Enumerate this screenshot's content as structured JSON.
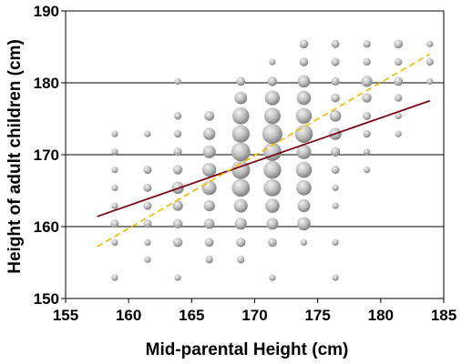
{
  "chart_data": {
    "type": "scatter",
    "title": "",
    "xlabel": "Mid-parental Height (cm)",
    "ylabel": "Height of adult children (cm)",
    "xlim": [
      155,
      185
    ],
    "ylim": [
      150,
      190
    ],
    "x_ticks": [
      155,
      160,
      165,
      170,
      175,
      180,
      185
    ],
    "y_ticks": [
      150,
      160,
      170,
      180,
      190
    ],
    "grid": "horizontal",
    "legend": "none",
    "marker_colors": {
      "light": "#f2f2f2",
      "dark": "#7a7a7a"
    },
    "x_columns": [
      158.9,
      161.5,
      163.9,
      166.4,
      168.9,
      171.4,
      173.9,
      176.4,
      178.9,
      181.4,
      183.9
    ],
    "points": [
      {
        "x": 158.9,
        "y": 152.9,
        "count": 1
      },
      {
        "x": 158.9,
        "y": 157.8,
        "count": 1
      },
      {
        "x": 158.9,
        "y": 160.4,
        "count": 3
      },
      {
        "x": 158.9,
        "y": 162.9,
        "count": 1
      },
      {
        "x": 158.9,
        "y": 165.4,
        "count": 1
      },
      {
        "x": 158.9,
        "y": 167.9,
        "count": 1
      },
      {
        "x": 158.9,
        "y": 170.4,
        "count": 1
      },
      {
        "x": 158.9,
        "y": 172.9,
        "count": 1
      },
      {
        "x": 161.5,
        "y": 155.4,
        "count": 1
      },
      {
        "x": 161.5,
        "y": 157.8,
        "count": 1
      },
      {
        "x": 161.5,
        "y": 160.4,
        "count": 3
      },
      {
        "x": 161.5,
        "y": 162.9,
        "count": 3
      },
      {
        "x": 161.5,
        "y": 165.4,
        "count": 3
      },
      {
        "x": 161.5,
        "y": 167.9,
        "count": 3
      },
      {
        "x": 161.5,
        "y": 172.9,
        "count": 1
      },
      {
        "x": 163.9,
        "y": 152.9,
        "count": 1
      },
      {
        "x": 163.9,
        "y": 157.8,
        "count": 5
      },
      {
        "x": 163.9,
        "y": 160.4,
        "count": 5
      },
      {
        "x": 163.9,
        "y": 162.9,
        "count": 7
      },
      {
        "x": 163.9,
        "y": 165.4,
        "count": 12
      },
      {
        "x": 163.9,
        "y": 167.9,
        "count": 5
      },
      {
        "x": 163.9,
        "y": 170.4,
        "count": 3
      },
      {
        "x": 163.9,
        "y": 172.9,
        "count": 2
      },
      {
        "x": 163.9,
        "y": 175.4,
        "count": 2
      },
      {
        "x": 163.9,
        "y": 180.2,
        "count": 1
      },
      {
        "x": 166.4,
        "y": 155.4,
        "count": 2
      },
      {
        "x": 166.4,
        "y": 157.8,
        "count": 4
      },
      {
        "x": 166.4,
        "y": 160.4,
        "count": 7
      },
      {
        "x": 166.4,
        "y": 162.9,
        "count": 9
      },
      {
        "x": 166.4,
        "y": 165.4,
        "count": 20
      },
      {
        "x": 166.4,
        "y": 167.9,
        "count": 18
      },
      {
        "x": 166.4,
        "y": 170.4,
        "count": 14
      },
      {
        "x": 166.4,
        "y": 172.9,
        "count": 12
      },
      {
        "x": 166.4,
        "y": 175.4,
        "count": 6
      },
      {
        "x": 168.9,
        "y": 155.4,
        "count": 2
      },
      {
        "x": 168.9,
        "y": 157.8,
        "count": 5
      },
      {
        "x": 168.9,
        "y": 160.4,
        "count": 11
      },
      {
        "x": 168.9,
        "y": 162.9,
        "count": 17
      },
      {
        "x": 168.9,
        "y": 165.4,
        "count": 36
      },
      {
        "x": 168.9,
        "y": 167.9,
        "count": 39
      },
      {
        "x": 168.9,
        "y": 170.4,
        "count": 41
      },
      {
        "x": 168.9,
        "y": 172.9,
        "count": 34
      },
      {
        "x": 168.9,
        "y": 175.4,
        "count": 31
      },
      {
        "x": 168.9,
        "y": 177.9,
        "count": 13
      },
      {
        "x": 168.9,
        "y": 180.2,
        "count": 4
      },
      {
        "x": 171.4,
        "y": 152.9,
        "count": 1
      },
      {
        "x": 171.4,
        "y": 157.8,
        "count": 4
      },
      {
        "x": 171.4,
        "y": 160.4,
        "count": 11
      },
      {
        "x": 171.4,
        "y": 162.9,
        "count": 19
      },
      {
        "x": 171.4,
        "y": 165.4,
        "count": 33
      },
      {
        "x": 171.4,
        "y": 167.9,
        "count": 35
      },
      {
        "x": 171.4,
        "y": 170.4,
        "count": 38
      },
      {
        "x": 171.4,
        "y": 172.9,
        "count": 48
      },
      {
        "x": 171.4,
        "y": 175.4,
        "count": 29
      },
      {
        "x": 171.4,
        "y": 177.9,
        "count": 22
      },
      {
        "x": 171.4,
        "y": 180.2,
        "count": 5
      },
      {
        "x": 171.4,
        "y": 182.9,
        "count": 1
      },
      {
        "x": 173.9,
        "y": 157.8,
        "count": 1
      },
      {
        "x": 173.9,
        "y": 160.4,
        "count": 16
      },
      {
        "x": 173.9,
        "y": 162.9,
        "count": 14
      },
      {
        "x": 173.9,
        "y": 165.4,
        "count": 23
      },
      {
        "x": 173.9,
        "y": 167.9,
        "count": 27
      },
      {
        "x": 173.9,
        "y": 170.4,
        "count": 21
      },
      {
        "x": 173.9,
        "y": 172.9,
        "count": 36
      },
      {
        "x": 173.9,
        "y": 175.4,
        "count": 26
      },
      {
        "x": 173.9,
        "y": 177.9,
        "count": 19
      },
      {
        "x": 173.9,
        "y": 180.2,
        "count": 13
      },
      {
        "x": 173.9,
        "y": 182.9,
        "count": 4
      },
      {
        "x": 173.9,
        "y": 185.4,
        "count": 4
      },
      {
        "x": 176.4,
        "y": 152.9,
        "count": 1
      },
      {
        "x": 176.4,
        "y": 157.8,
        "count": 1
      },
      {
        "x": 176.4,
        "y": 162.9,
        "count": 1
      },
      {
        "x": 176.4,
        "y": 165.4,
        "count": 1
      },
      {
        "x": 176.4,
        "y": 167.9,
        "count": 3
      },
      {
        "x": 176.4,
        "y": 170.4,
        "count": 5
      },
      {
        "x": 176.4,
        "y": 172.9,
        "count": 12
      },
      {
        "x": 176.4,
        "y": 175.4,
        "count": 10
      },
      {
        "x": 176.4,
        "y": 177.9,
        "count": 4
      },
      {
        "x": 176.4,
        "y": 180.2,
        "count": 3
      },
      {
        "x": 176.4,
        "y": 182.9,
        "count": 3
      },
      {
        "x": 176.4,
        "y": 185.4,
        "count": 3
      },
      {
        "x": 178.9,
        "y": 167.9,
        "count": 1
      },
      {
        "x": 178.9,
        "y": 170.4,
        "count": 1
      },
      {
        "x": 178.9,
        "y": 172.9,
        "count": 2
      },
      {
        "x": 178.9,
        "y": 175.4,
        "count": 3
      },
      {
        "x": 178.9,
        "y": 177.9,
        "count": 5
      },
      {
        "x": 178.9,
        "y": 180.2,
        "count": 9
      },
      {
        "x": 178.9,
        "y": 182.9,
        "count": 2
      },
      {
        "x": 178.9,
        "y": 185.4,
        "count": 2
      },
      {
        "x": 181.4,
        "y": 172.9,
        "count": 1
      },
      {
        "x": 181.4,
        "y": 175.4,
        "count": 1
      },
      {
        "x": 181.4,
        "y": 177.9,
        "count": 2
      },
      {
        "x": 181.4,
        "y": 180.2,
        "count": 4
      },
      {
        "x": 181.4,
        "y": 182.9,
        "count": 2
      },
      {
        "x": 181.4,
        "y": 185.4,
        "count": 4
      },
      {
        "x": 183.9,
        "y": 180.2,
        "count": 1
      },
      {
        "x": 183.9,
        "y": 182.9,
        "count": 2
      },
      {
        "x": 183.9,
        "y": 185.4,
        "count": 1
      }
    ],
    "lines": [
      {
        "style": "solid",
        "color": "#7a0a14",
        "x": [
          157.5,
          183.9
        ],
        "y": [
          161.4,
          177.5
        ]
      },
      {
        "style": "dashed",
        "color": "#f5b800",
        "x": [
          157.5,
          183.9
        ],
        "y": [
          157.2,
          184.0
        ]
      }
    ]
  }
}
